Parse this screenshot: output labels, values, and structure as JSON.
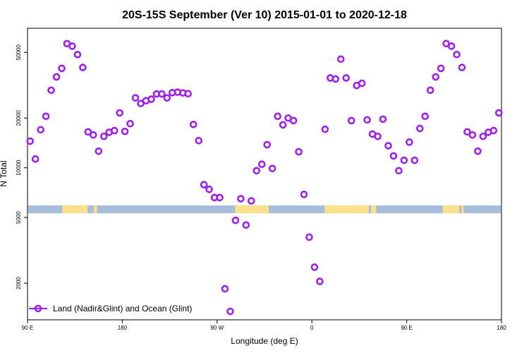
{
  "chart_data": {
    "type": "scatter",
    "title": "20S-15S September (Ver 10)   2015-01-01 to 2020-12-18",
    "xlabel": "Longitude (deg E)",
    "ylabel": "N Total",
    "x_scale": "linear",
    "y_scale": "log",
    "xlim": [
      90,
      540
    ],
    "ylim": [
      1200,
      70000
    ],
    "x_ticks": [
      {
        "value": 90,
        "label": "90 E"
      },
      {
        "value": 180,
        "label": "180"
      },
      {
        "value": 270,
        "label": "90 W"
      },
      {
        "value": 360,
        "label": "0"
      },
      {
        "value": 450,
        "label": "90 E"
      },
      {
        "value": 540,
        "label": "180"
      }
    ],
    "y_ticks": [
      {
        "value": 2000,
        "label": "2000"
      },
      {
        "value": 5000,
        "label": "5000"
      },
      {
        "value": 10000,
        "label": "10000"
      },
      {
        "value": 20000,
        "label": "20000"
      },
      {
        "value": 50000,
        "label": "50000"
      }
    ],
    "grid": false,
    "legend_position": "bottom-left",
    "surface_strip": {
      "y_value": 5600,
      "ocean_color": "#a7bddc",
      "land_color": "#fce08a",
      "land_segments": [
        [
          123,
          147
        ],
        [
          153,
          156
        ],
        [
          287,
          319
        ],
        [
          372,
          414
        ],
        [
          416,
          421
        ],
        [
          484,
          500
        ],
        [
          502,
          504
        ]
      ]
    },
    "series": [
      {
        "name": "Land (Nadir&Glint) and Ocean (Glint)",
        "color": "#a020f0",
        "marker": "ring",
        "x": [
          92.5,
          97.5,
          102.5,
          107.5,
          112.5,
          117.5,
          122.5,
          127.5,
          132.5,
          137.5,
          142.5,
          147.5,
          152.5,
          157.5,
          162.5,
          167.5,
          172.5,
          177.5,
          182.5,
          187.5,
          192.5,
          197.5,
          202.5,
          207.5,
          212.5,
          217.5,
          222.5,
          227.5,
          232.5,
          237.5,
          242.5,
          247.5,
          252.5,
          257.5,
          262.5,
          267.5,
          272.5,
          277.5,
          282.5,
          287.5,
          292.5,
          297.5,
          302.5,
          307.5,
          312.5,
          317.5,
          322.5,
          327.5,
          332.5,
          337.5,
          342.5,
          347.5,
          352.5,
          357.5,
          362.5,
          367.5,
          372.5,
          377.5,
          382.5,
          387.5,
          392.5,
          397.5,
          402.5,
          407.5,
          412.5,
          417.5,
          422.5,
          427.5,
          432.5,
          437.5,
          442.5,
          447.5,
          452.5,
          457.5,
          462.5,
          467.5,
          472.5,
          477.5,
          482.5,
          487.5,
          492.5,
          497.5,
          502.5,
          507.5,
          512.5,
          517.5,
          522.5,
          527.5,
          532.5,
          537.5
        ],
        "y": [
          14500,
          11300,
          17000,
          20500,
          29500,
          35500,
          40000,
          56500,
          54500,
          48500,
          40500,
          16500,
          15800,
          12600,
          15500,
          16400,
          16800,
          21500,
          16600,
          18500,
          26500,
          24500,
          25500,
          26000,
          28000,
          28000,
          26500,
          28500,
          28700,
          28400,
          28100,
          18300,
          14600,
          7900,
          7400,
          6600,
          6600,
          1850,
          1350,
          4800,
          6500,
          4500,
          6300,
          9600,
          10500,
          13800,
          9900,
          20500,
          18200,
          20000,
          19300,
          12500,
          6900,
          3800,
          2500,
          2050,
          17100,
          35000,
          34500,
          45500,
          35000,
          19300,
          31500,
          32500,
          19500,
          16000,
          15500,
          19700,
          13600,
          11800,
          9600,
          11100,
          14300,
          11100,
          17300,
          20500,
          29500,
          35500,
          40000,
          56500,
          54500,
          48500,
          40500,
          16500,
          15800,
          12600,
          15500,
          16400,
          16800,
          21500
        ]
      }
    ]
  }
}
